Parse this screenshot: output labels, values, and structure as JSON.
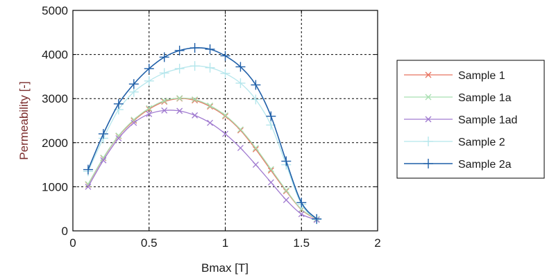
{
  "chart_data": {
    "type": "line",
    "xlabel": "Bmax [T]",
    "ylabel": "Permeability [-]",
    "xlim": [
      0,
      2
    ],
    "ylim": [
      0,
      5000
    ],
    "x_ticks": [
      "0",
      "0.5",
      "1",
      "1.5",
      "2"
    ],
    "y_ticks": [
      "0",
      "1000",
      "2000",
      "3000",
      "4000",
      "5000"
    ],
    "grid": true,
    "legend_position": "right",
    "series": [
      {
        "name": "Sample 1",
        "color": "#e8735f",
        "marker": "x",
        "x": [
          0.1,
          0.2,
          0.3,
          0.4,
          0.5,
          0.6,
          0.7,
          0.8,
          0.9,
          1.0,
          1.1,
          1.2,
          1.3,
          1.4,
          1.5,
          1.6
        ],
        "y": [
          1050,
          1650,
          2150,
          2500,
          2760,
          2930,
          3000,
          2960,
          2820,
          2600,
          2280,
          1850,
          1370,
          900,
          480,
          260
        ]
      },
      {
        "name": "Sample 1a",
        "color": "#a8dfb0",
        "marker": "x",
        "x": [
          0.1,
          0.2,
          0.3,
          0.4,
          0.5,
          0.6,
          0.7,
          0.8,
          0.9,
          1.0,
          1.1,
          1.2,
          1.3,
          1.4,
          1.5,
          1.6
        ],
        "y": [
          1060,
          1660,
          2160,
          2520,
          2780,
          2950,
          3010,
          2980,
          2840,
          2620,
          2300,
          1880,
          1400,
          920,
          490,
          270
        ]
      },
      {
        "name": "Sample 1ad",
        "color": "#a07ad0",
        "marker": "x",
        "x": [
          0.1,
          0.2,
          0.3,
          0.4,
          0.5,
          0.6,
          0.7,
          0.8,
          0.9,
          1.0,
          1.1,
          1.2,
          1.3,
          1.4,
          1.5,
          1.6
        ],
        "y": [
          1000,
          1600,
          2100,
          2450,
          2650,
          2730,
          2720,
          2620,
          2450,
          2200,
          1880,
          1500,
          1100,
          700,
          380,
          250
        ]
      },
      {
        "name": "Sample 2",
        "color": "#b5e6ec",
        "marker": "+",
        "x": [
          0.1,
          0.2,
          0.3,
          0.4,
          0.5,
          0.6,
          0.7,
          0.8,
          0.9,
          1.0,
          1.1,
          1.2,
          1.3,
          1.4,
          1.5,
          1.6
        ],
        "y": [
          1350,
          2100,
          2750,
          3150,
          3400,
          3580,
          3680,
          3740,
          3700,
          3570,
          3350,
          2980,
          2400,
          1500,
          600,
          260
        ]
      },
      {
        "name": "Sample 2a",
        "color": "#1f5fa8",
        "marker": "+",
        "x": [
          0.1,
          0.2,
          0.3,
          0.4,
          0.5,
          0.6,
          0.7,
          0.8,
          0.9,
          1.0,
          1.1,
          1.2,
          1.3,
          1.4,
          1.5,
          1.6
        ],
        "y": [
          1390,
          2200,
          2880,
          3330,
          3680,
          3940,
          4090,
          4150,
          4120,
          3970,
          3720,
          3310,
          2600,
          1580,
          640,
          270
        ]
      }
    ]
  }
}
